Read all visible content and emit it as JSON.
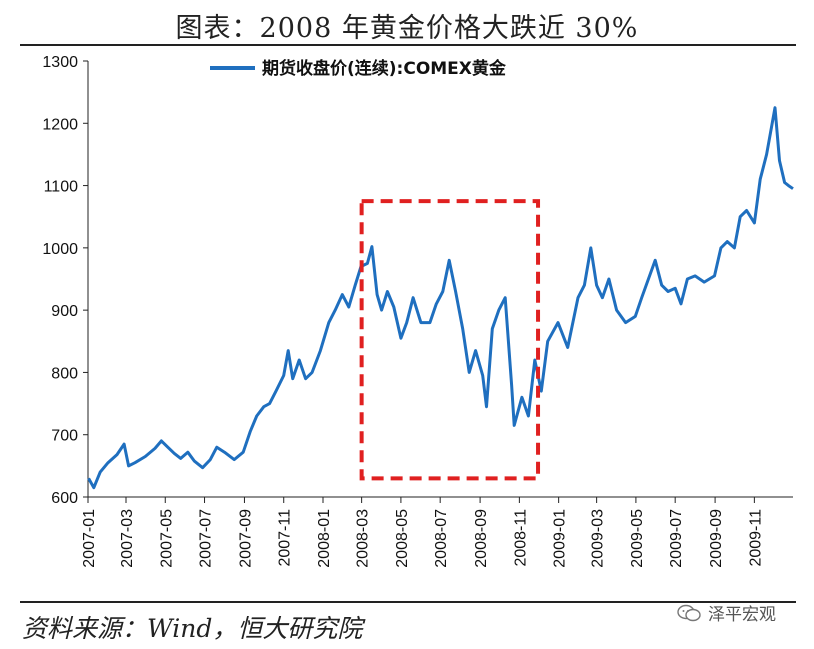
{
  "title": "图表：2008 年黄金价格大跌近 30%",
  "source": "资料来源：Wind，恒大研究院",
  "watermark": "泽平宏观",
  "chart_data": {
    "type": "line",
    "xlabel": "",
    "ylabel": "",
    "ylim": [
      600,
      1300
    ],
    "yticks": [
      600,
      700,
      800,
      900,
      1000,
      1100,
      1200,
      1300
    ],
    "xlim": [
      "2007-01-01",
      "2009-12-31"
    ],
    "xticks": [
      "2007-01",
      "2007-03",
      "2007-05",
      "2007-07",
      "2007-09",
      "2007-11",
      "2008-01",
      "2008-03",
      "2008-05",
      "2008-07",
      "2008-09",
      "2008-11",
      "2009-01",
      "2009-03",
      "2009-05",
      "2009-07",
      "2009-09",
      "2009-11"
    ],
    "legend_position": "top-center",
    "grid": false,
    "series": [
      {
        "name": "期货收盘价(连续):COMEX黄金",
        "color": "#1f6fbf",
        "points": [
          [
            "2007-01-02",
            630
          ],
          [
            "2007-01-10",
            615
          ],
          [
            "2007-01-20",
            640
          ],
          [
            "2007-02-01",
            655
          ],
          [
            "2007-02-15",
            668
          ],
          [
            "2007-02-26",
            685
          ],
          [
            "2007-03-05",
            650
          ],
          [
            "2007-03-15",
            655
          ],
          [
            "2007-03-31",
            665
          ],
          [
            "2007-04-15",
            678
          ],
          [
            "2007-04-25",
            690
          ],
          [
            "2007-05-05",
            680
          ],
          [
            "2007-05-15",
            670
          ],
          [
            "2007-05-25",
            662
          ],
          [
            "2007-06-05",
            672
          ],
          [
            "2007-06-15",
            658
          ],
          [
            "2007-06-28",
            647
          ],
          [
            "2007-07-10",
            660
          ],
          [
            "2007-07-20",
            680
          ],
          [
            "2007-08-01",
            672
          ],
          [
            "2007-08-16",
            660
          ],
          [
            "2007-08-30",
            672
          ],
          [
            "2007-09-10",
            705
          ],
          [
            "2007-09-20",
            730
          ],
          [
            "2007-10-01",
            745
          ],
          [
            "2007-10-10",
            750
          ],
          [
            "2007-10-20",
            770
          ],
          [
            "2007-11-01",
            795
          ],
          [
            "2007-11-08",
            835
          ],
          [
            "2007-11-15",
            790
          ],
          [
            "2007-11-25",
            820
          ],
          [
            "2007-12-05",
            790
          ],
          [
            "2007-12-15",
            800
          ],
          [
            "2007-12-28",
            835
          ],
          [
            "2008-01-10",
            880
          ],
          [
            "2008-01-20",
            900
          ],
          [
            "2008-01-31",
            925
          ],
          [
            "2008-02-10",
            905
          ],
          [
            "2008-02-20",
            940
          ],
          [
            "2008-02-29",
            970
          ],
          [
            "2008-03-10",
            975
          ],
          [
            "2008-03-17",
            1002
          ],
          [
            "2008-03-25",
            925
          ],
          [
            "2008-04-01",
            900
          ],
          [
            "2008-04-10",
            930
          ],
          [
            "2008-04-20",
            905
          ],
          [
            "2008-05-01",
            855
          ],
          [
            "2008-05-10",
            880
          ],
          [
            "2008-05-20",
            920
          ],
          [
            "2008-06-01",
            880
          ],
          [
            "2008-06-15",
            880
          ],
          [
            "2008-06-25",
            910
          ],
          [
            "2008-07-05",
            930
          ],
          [
            "2008-07-15",
            980
          ],
          [
            "2008-07-25",
            930
          ],
          [
            "2008-08-05",
            870
          ],
          [
            "2008-08-15",
            800
          ],
          [
            "2008-08-25",
            835
          ],
          [
            "2008-09-05",
            795
          ],
          [
            "2008-09-11",
            745
          ],
          [
            "2008-09-20",
            870
          ],
          [
            "2008-09-30",
            900
          ],
          [
            "2008-10-10",
            920
          ],
          [
            "2008-10-20",
            780
          ],
          [
            "2008-10-24",
            715
          ],
          [
            "2008-11-05",
            760
          ],
          [
            "2008-11-15",
            730
          ],
          [
            "2008-11-25",
            820
          ],
          [
            "2008-12-05",
            770
          ],
          [
            "2008-12-15",
            850
          ],
          [
            "2008-12-31",
            880
          ],
          [
            "2009-01-15",
            840
          ],
          [
            "2009-01-31",
            920
          ],
          [
            "2009-02-10",
            940
          ],
          [
            "2009-02-20",
            1000
          ],
          [
            "2009-03-01",
            940
          ],
          [
            "2009-03-10",
            920
          ],
          [
            "2009-03-20",
            950
          ],
          [
            "2009-04-01",
            900
          ],
          [
            "2009-04-15",
            880
          ],
          [
            "2009-04-30",
            890
          ],
          [
            "2009-05-10",
            920
          ],
          [
            "2009-05-31",
            980
          ],
          [
            "2009-06-10",
            940
          ],
          [
            "2009-06-20",
            930
          ],
          [
            "2009-07-01",
            935
          ],
          [
            "2009-07-10",
            910
          ],
          [
            "2009-07-20",
            950
          ],
          [
            "2009-08-01",
            955
          ],
          [
            "2009-08-15",
            945
          ],
          [
            "2009-08-31",
            955
          ],
          [
            "2009-09-10",
            1000
          ],
          [
            "2009-09-20",
            1010
          ],
          [
            "2009-10-01",
            1000
          ],
          [
            "2009-10-10",
            1050
          ],
          [
            "2009-10-20",
            1060
          ],
          [
            "2009-11-01",
            1040
          ],
          [
            "2009-11-10",
            1110
          ],
          [
            "2009-11-20",
            1150
          ],
          [
            "2009-12-03",
            1225
          ],
          [
            "2009-12-10",
            1140
          ],
          [
            "2009-12-18",
            1105
          ],
          [
            "2009-12-24",
            1100
          ],
          [
            "2009-12-31",
            1095
          ]
        ]
      }
    ],
    "annotation": {
      "type": "dashed-box",
      "color": "#e02020",
      "x_start": "2008-03-01",
      "x_end": "2008-11-30",
      "y_low": 630,
      "y_high": 1075
    }
  }
}
